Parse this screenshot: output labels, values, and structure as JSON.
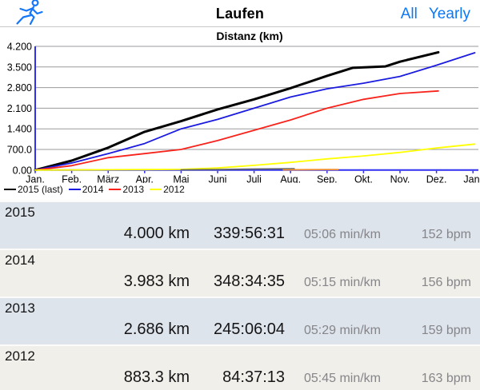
{
  "header": {
    "title": "Laufen",
    "nav": [
      {
        "label": "All"
      },
      {
        "label": "Yearly"
      }
    ],
    "accent_color": "#0b79f7"
  },
  "chart_data": {
    "type": "line",
    "title": "Distanz (km)",
    "xlabel": "",
    "ylabel": "Distanz (km)",
    "ylim": [
      0,
      4200
    ],
    "grid": true,
    "legend_position": "bottom-left",
    "axis_color": "#3030f0",
    "grid_color": "#9a9a9c",
    "x_months": [
      "Jan.",
      "Feb.",
      "März",
      "Apr.",
      "Mai",
      "Juni",
      "Juli",
      "Aug.",
      "Sep.",
      "Okt.",
      "Nov.",
      "Dez.",
      "Jan."
    ],
    "yticks": [
      {
        "label": "0.00",
        "value": 0
      },
      {
        "label": "700.0",
        "value": 700
      },
      {
        "label": "1.400",
        "value": 1400
      },
      {
        "label": "2.100",
        "value": 2100
      },
      {
        "label": "2.800",
        "value": 2800
      },
      {
        "label": "3.500",
        "value": 3500
      },
      {
        "label": "4.200",
        "value": 4200
      }
    ],
    "series": [
      {
        "name": "2015 (last)",
        "color": "#000000",
        "width": 3,
        "in_legend": true,
        "x": [
          0,
          1,
          2,
          3,
          4,
          5,
          6,
          7,
          8,
          8.7,
          9.6,
          10,
          11.05
        ],
        "y": [
          0,
          320,
          760,
          1300,
          1660,
          2060,
          2400,
          2780,
          3200,
          3470,
          3520,
          3680,
          4000
        ]
      },
      {
        "name": "2014",
        "color": "#1b1be0",
        "width": 1.8,
        "in_legend": true,
        "x": [
          0,
          1,
          2,
          3,
          4,
          5,
          6,
          7,
          8,
          9,
          10,
          11,
          12.05
        ],
        "y": [
          0,
          240,
          560,
          900,
          1400,
          1720,
          2100,
          2480,
          2760,
          2950,
          3180,
          3560,
          3983
        ]
      },
      {
        "name": "2013",
        "color": "#f8231b",
        "width": 1.8,
        "in_legend": true,
        "x": [
          0,
          1,
          2,
          3,
          4,
          5,
          6,
          7,
          8,
          9,
          10,
          11.05
        ],
        "y": [
          0,
          150,
          420,
          560,
          700,
          1000,
          1350,
          1700,
          2100,
          2400,
          2600,
          2686
        ]
      },
      {
        "name": "2012",
        "color": "#ffff00",
        "width": 1.8,
        "in_legend": true,
        "x": [
          0,
          1,
          2,
          3,
          4,
          5,
          6,
          7,
          8,
          9,
          10,
          11,
          12.05
        ],
        "y": [
          0,
          5,
          10,
          15,
          25,
          70,
          160,
          260,
          380,
          480,
          600,
          750,
          883
        ]
      },
      {
        "name": "",
        "color": "#606468",
        "width": 1.8,
        "in_legend": false,
        "x": [
          4,
          5,
          6,
          7.1
        ],
        "y": [
          5,
          20,
          35,
          45
        ]
      },
      {
        "name": "",
        "color": "#ef8f33",
        "width": 1.8,
        "in_legend": false,
        "x": [
          6.8,
          8,
          8.3
        ],
        "y": [
          8,
          18,
          20
        ]
      }
    ]
  },
  "table": {
    "rows": [
      {
        "year": "2015",
        "distance": "4.000 km",
        "time": "339:56:31",
        "pace": "05:06 min/km",
        "hr": "152 bpm"
      },
      {
        "year": "2014",
        "distance": "3.983 km",
        "time": "348:34:35",
        "pace": "05:15 min/km",
        "hr": "156 bpm"
      },
      {
        "year": "2013",
        "distance": "2.686 km",
        "time": "245:06:04",
        "pace": "05:29 min/km",
        "hr": "159 bpm"
      },
      {
        "year": "2012",
        "distance": "883.3 km",
        "time": "84:37:13",
        "pace": "05:45 min/km",
        "hr": "163 bpm"
      }
    ]
  }
}
